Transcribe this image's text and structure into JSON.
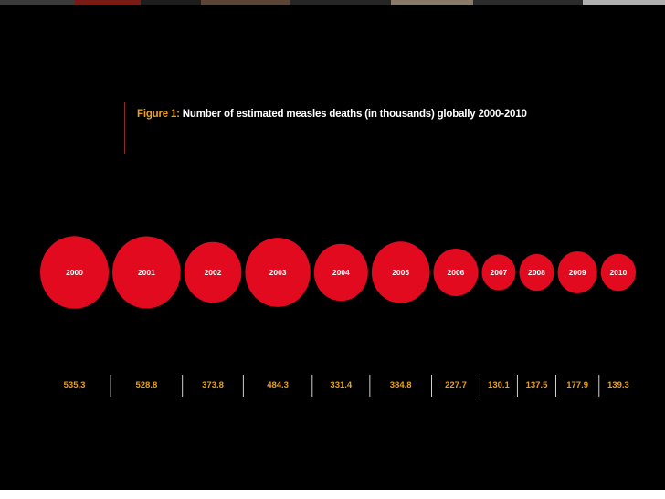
{
  "top_strip_colors": [
    "#3a3a3a",
    "#7a1a14",
    "#1d1d1d",
    "#5a4536",
    "#262626",
    "#8a7a6a",
    "#2b2b2b",
    "#b0b0b0"
  ],
  "figure": {
    "title_lead": "Figure 1:",
    "title_rest": " Number of estimated measles deaths (in thousands) globally 2000-2010"
  },
  "colors": {
    "bubble": "#e10a1f",
    "accent": "#e8a021",
    "divider": "#cfcfcf",
    "background": "#000000"
  },
  "chart_data": {
    "type": "bubble",
    "title": "Figure 1: Number of estimated measles deaths (in thousands) globally 2000-2010",
    "categories": [
      "2000",
      "2001",
      "2002",
      "2003",
      "2004",
      "2005",
      "2006",
      "2007",
      "2008",
      "2009",
      "2010"
    ],
    "values": [
      535.3,
      528.8,
      373.8,
      484.3,
      331.4,
      384.8,
      227.7,
      130.1,
      137.5,
      177.9,
      139.3
    ],
    "value_labels": [
      "535,3",
      "528.8",
      "373.8",
      "484.3",
      "331.4",
      "384.8",
      "227.7",
      "130.1",
      "137.5",
      "177.9",
      "139.3"
    ],
    "grid": false,
    "legend": "none"
  }
}
